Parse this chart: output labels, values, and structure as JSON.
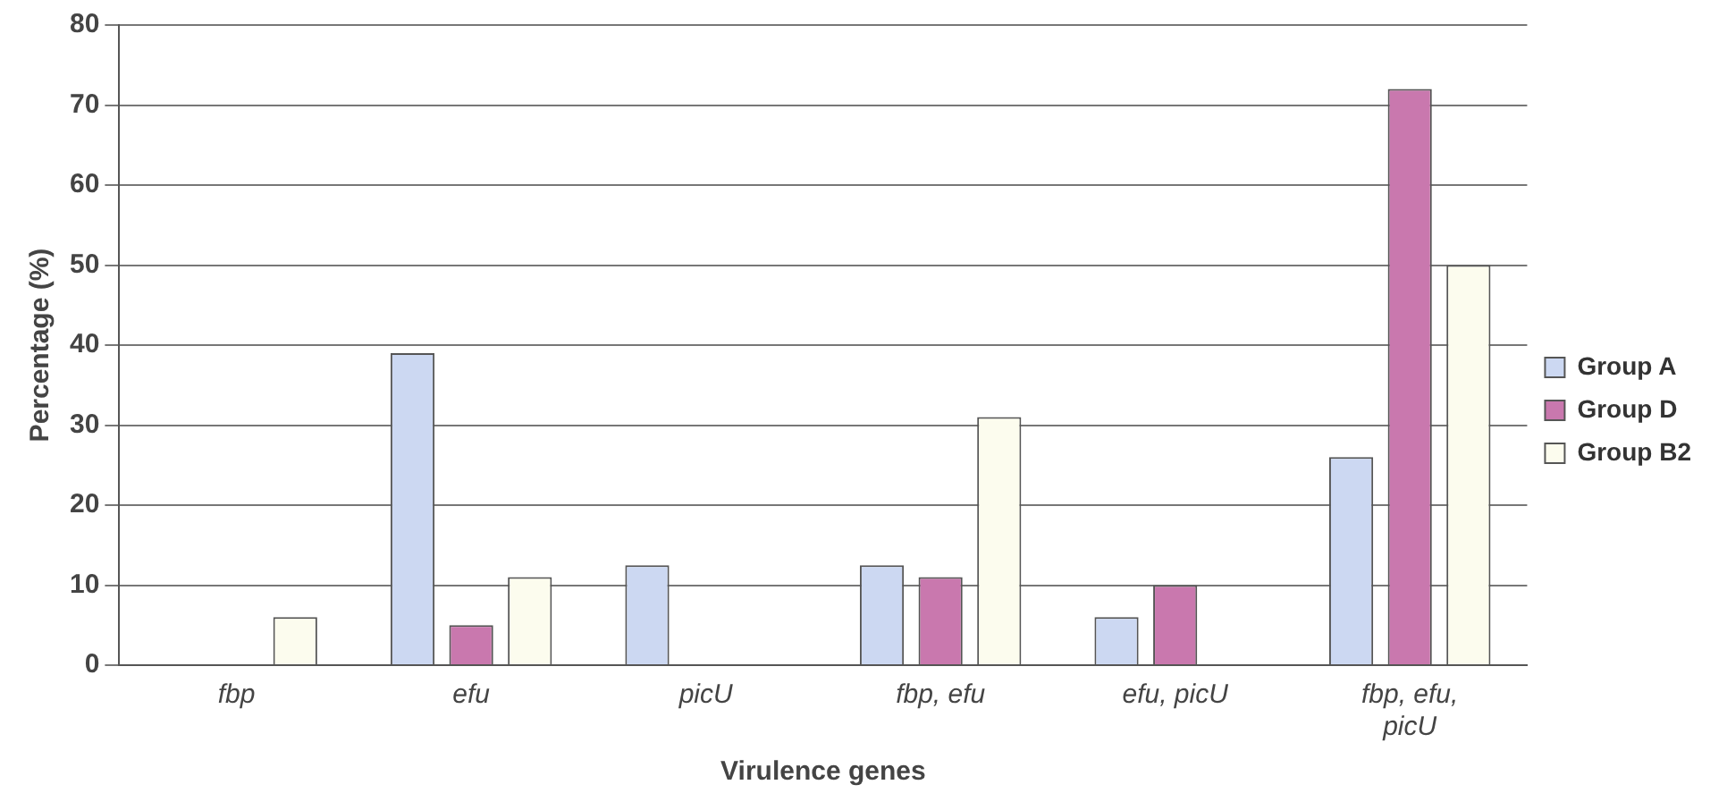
{
  "chart_data": {
    "type": "bar",
    "xlabel": "Virulence genes",
    "ylabel": "Percentage (%)",
    "categories": [
      "fbp",
      "efu",
      "picU",
      "fbp, efu",
      "efu, picU",
      "fbp, efu, picU"
    ],
    "series": [
      {
        "name": "Group A",
        "color": "#ccd8f2",
        "values": [
          0,
          39,
          12.5,
          12.5,
          6,
          26
        ]
      },
      {
        "name": "Group D",
        "color": "#c978ae",
        "values": [
          0,
          5,
          0,
          11,
          10,
          72
        ]
      },
      {
        "name": "Group B2",
        "color": "#fcfcee",
        "values": [
          6,
          11,
          0,
          31,
          0,
          50
        ]
      }
    ],
    "ylim": [
      0,
      80
    ],
    "yticks": [
      0,
      10,
      20,
      30,
      40,
      50,
      60,
      70,
      80
    ],
    "grid": "y",
    "legend": "right"
  }
}
